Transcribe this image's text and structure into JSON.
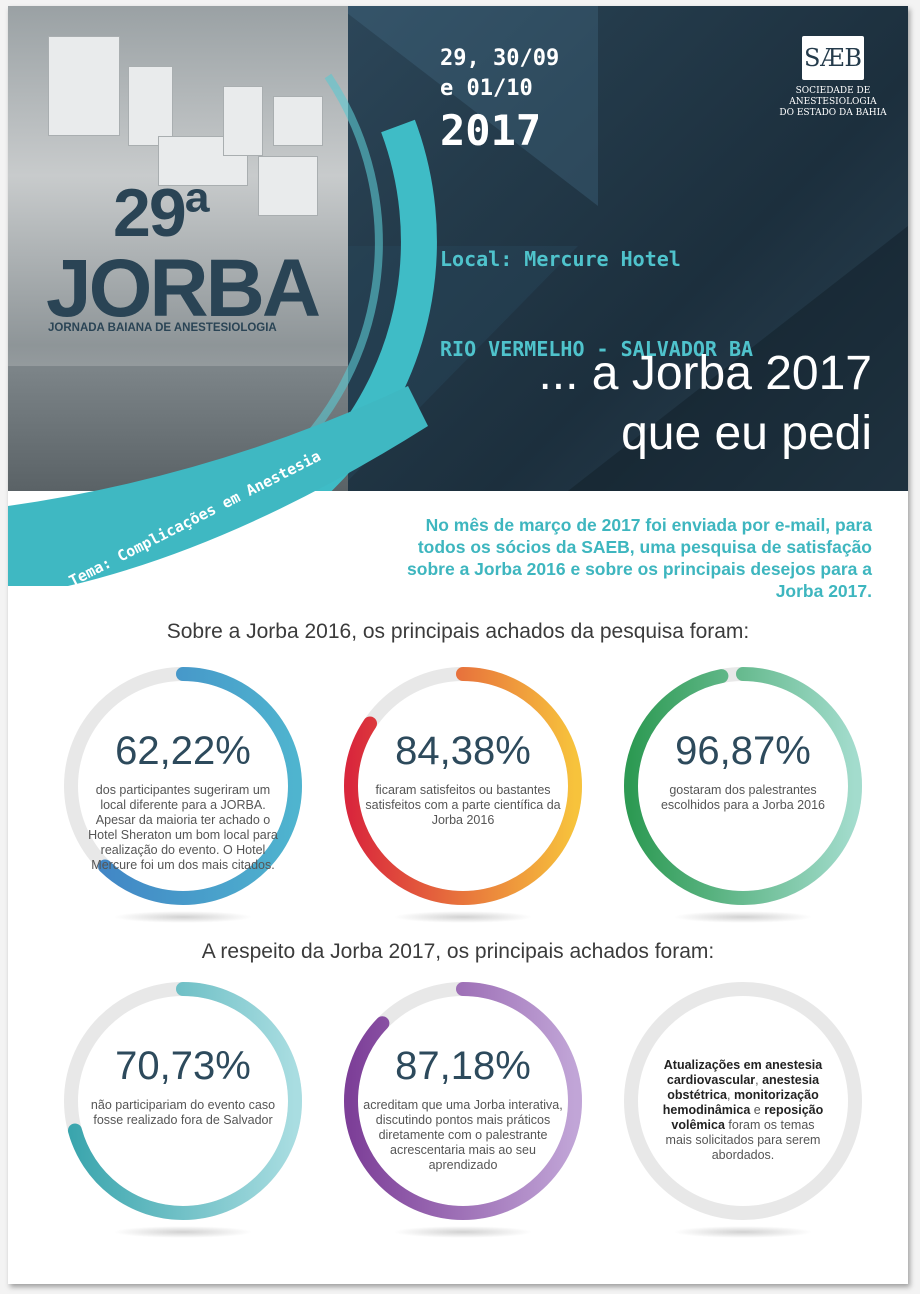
{
  "header": {
    "date_line1": "29, 30/09",
    "date_line2": "e 01/10",
    "year": "2017",
    "local_line1": "Local: Mercure Hotel",
    "local_line2": "RIO VERMELHO - SALVADOR BA",
    "slogan_line1": "... a Jorba 2017",
    "slogan_line2": "que eu pedi"
  },
  "saeb": {
    "logo_text": "SÆB",
    "line1": "SOCIEDADE DE",
    "line2": "ANESTESIOLOGIA",
    "line3": "DO ESTADO DA BAHIA"
  },
  "event_logo": {
    "number": "29ª",
    "name": "JORBA",
    "subtitle": "JORNADA BAIANA DE ANESTESIOLOGIA",
    "theme": "Tema: Complicações em Anestesia"
  },
  "intro": "No mês de março de 2017 foi enviada por e-mail, para todos os sócios da SAEB, uma pesquisa de satisfação sobre a Jorba 2016 e sobre os principais desejos para a Jorba 2017.",
  "section1_title": "Sobre a Jorba 2016, os principais achados da pesquisa foram:",
  "section2_title": "A respeito da Jorba 2017, os principais achados foram:",
  "stats": [
    {
      "percent": "62,22%",
      "value": 0.6222,
      "text": "dos participantes  sugeriram um local diferente para a JORBA. Apesar da maioria ter achado o Hotel Sheraton um bom local para realização do evento. O Hotel Mercure foi um dos mais citados.",
      "color_start": "#3f7fc4",
      "color_end": "#4fb4cf"
    },
    {
      "percent": "84,38%",
      "value": 0.8438,
      "text": "ficaram satisfeitos ou bastantes satisfeitos com a parte científica da Jorba 2016",
      "color_start": "#d9273c",
      "color_end": "#f7c33c"
    },
    {
      "percent": "96,87%",
      "value": 0.9687,
      "text": "gostaram dos palestrantes escolhidos para a Jorba 2016",
      "color_start": "#2d9a53",
      "color_end": "#a3dccd"
    },
    {
      "percent": "70,73%",
      "value": 0.7073,
      "text": "não participariam do evento caso fosse realizado fora de Salvador",
      "color_start": "#3aa5ad",
      "color_end": "#a9dde1"
    },
    {
      "percent": "87,18%",
      "value": 0.8718,
      "text": "acreditam que uma Jorba interativa, discutindo pontos mais práticos diretamente com o palestrante acrescentaria mais ao seu aprendizado",
      "color_start": "#7d3f98",
      "color_end": "#c1a5d7"
    }
  ],
  "last_circle": {
    "b1": "Atualizações em anestesia cardiovascular",
    "t1": ", ",
    "b2": "anestesia obstétrica",
    "t2": ", ",
    "b3": "monitorização hemodinâmica",
    "t3": " e ",
    "b4": "reposição volêmica",
    "t4": " foram os temas mais solicitados para serem abordados."
  },
  "colors": {
    "dark_header": "#243b4b",
    "teal_accent": "#3eb6bf",
    "track_gray": "#e8e8e8"
  }
}
